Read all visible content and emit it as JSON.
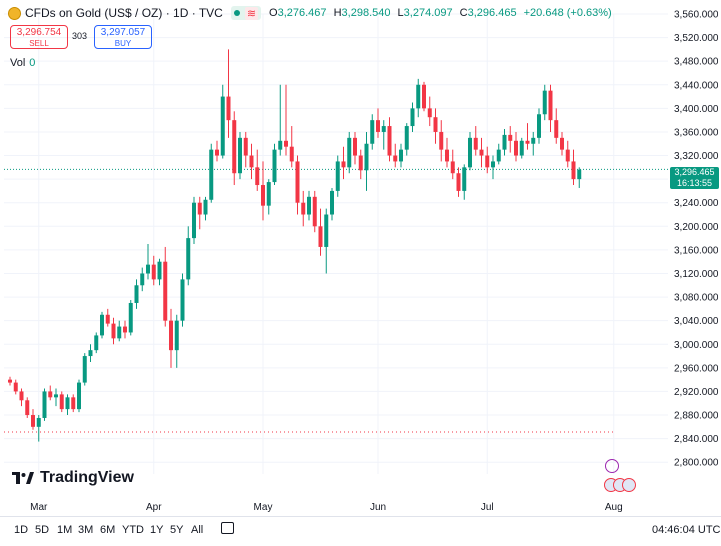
{
  "header": {
    "symbol": "CFDs on Gold (US$ / OZ) · 1D · TVC",
    "status_wave": "≋",
    "ohlc": {
      "o_label": "O",
      "o": "3,276.467",
      "h_label": "H",
      "h": "3,298.540",
      "l_label": "L",
      "l": "3,274.097",
      "c_label": "C",
      "c": "3,296.465",
      "change": "+20.648 (+0.63%)"
    }
  },
  "trade": {
    "sell_price": "3,296.754",
    "sell_label": "SELL",
    "spread": "303",
    "buy_price": "3,297.057",
    "buy_label": "BUY"
  },
  "volume": {
    "label": "Vol",
    "value": "0"
  },
  "price_tag": {
    "price": "3,296.465",
    "countdown": "16:13:55"
  },
  "logo": {
    "text": "TradingView"
  },
  "ranges": [
    "1D",
    "5D",
    "1M",
    "3M",
    "6M",
    "YTD",
    "1Y",
    "5Y",
    "All"
  ],
  "clock": "04:46:04 UTC",
  "colors": {
    "up": "#089981",
    "down": "#f23645",
    "grid": "#f0f3fa"
  },
  "chart_data": {
    "type": "candlestick",
    "ylim": [
      2780,
      3560
    ],
    "y_ticks": [
      2800,
      2840,
      2880,
      2920,
      2960,
      3000,
      3040,
      3080,
      3120,
      3160,
      3200,
      3240,
      3280,
      3320,
      3360,
      3400,
      3440,
      3480,
      3520,
      3560
    ],
    "y_tick_labels": [
      "2,800.000",
      "2,840.000",
      "2,880.000",
      "2,920.000",
      "2,960.000",
      "3,000.000",
      "3,040.000",
      "3,080.000",
      "3,120.000",
      "3,160.000",
      "3,200.000",
      "3,240.000",
      "3,280.000",
      "3,320.000",
      "3,360.000",
      "3,400.000",
      "3,440.000",
      "3,480.000",
      "3,520.000",
      "3,560.000"
    ],
    "x_labels": [
      {
        "label": "Mar",
        "index": 5
      },
      {
        "label": "Apr",
        "index": 25
      },
      {
        "label": "May",
        "index": 44
      },
      {
        "label": "Jun",
        "index": 64
      },
      {
        "label": "Jul",
        "index": 83
      },
      {
        "label": "Aug",
        "index": 105
      }
    ],
    "last_price": 3296.465,
    "ohlc": [
      [
        2940,
        2945,
        2930,
        2935
      ],
      [
        2935,
        2940,
        2915,
        2920
      ],
      [
        2920,
        2925,
        2895,
        2905
      ],
      [
        2905,
        2910,
        2875,
        2880
      ],
      [
        2880,
        2890,
        2855,
        2860
      ],
      [
        2860,
        2880,
        2835,
        2875
      ],
      [
        2875,
        2925,
        2870,
        2920
      ],
      [
        2920,
        2930,
        2905,
        2910
      ],
      [
        2910,
        2925,
        2895,
        2915
      ],
      [
        2915,
        2920,
        2885,
        2890
      ],
      [
        2890,
        2915,
        2880,
        2910
      ],
      [
        2910,
        2915,
        2885,
        2890
      ],
      [
        2890,
        2940,
        2885,
        2935
      ],
      [
        2935,
        2985,
        2930,
        2980
      ],
      [
        2980,
        3000,
        2970,
        2990
      ],
      [
        2990,
        3020,
        2985,
        3015
      ],
      [
        3015,
        3055,
        3010,
        3050
      ],
      [
        3050,
        3060,
        3030,
        3035
      ],
      [
        3035,
        3045,
        3000,
        3010
      ],
      [
        3010,
        3040,
        3005,
        3030
      ],
      [
        3030,
        3040,
        3010,
        3020
      ],
      [
        3020,
        3075,
        3015,
        3070
      ],
      [
        3070,
        3110,
        3060,
        3100
      ],
      [
        3100,
        3130,
        3090,
        3120
      ],
      [
        3120,
        3170,
        3110,
        3135
      ],
      [
        3135,
        3150,
        3100,
        3110
      ],
      [
        3110,
        3145,
        3100,
        3140
      ],
      [
        3140,
        3165,
        3030,
        3040
      ],
      [
        3040,
        3060,
        2960,
        2990
      ],
      [
        2990,
        3050,
        2960,
        3040
      ],
      [
        3040,
        3120,
        3030,
        3110
      ],
      [
        3110,
        3200,
        3100,
        3180
      ],
      [
        3180,
        3250,
        3170,
        3240
      ],
      [
        3240,
        3250,
        3195,
        3220
      ],
      [
        3220,
        3250,
        3210,
        3245
      ],
      [
        3245,
        3340,
        3240,
        3330
      ],
      [
        3330,
        3345,
        3310,
        3320
      ],
      [
        3320,
        3440,
        3315,
        3420
      ],
      [
        3420,
        3500,
        3350,
        3380
      ],
      [
        3380,
        3395,
        3270,
        3290
      ],
      [
        3290,
        3360,
        3280,
        3350
      ],
      [
        3350,
        3360,
        3300,
        3320
      ],
      [
        3320,
        3340,
        3280,
        3300
      ],
      [
        3300,
        3330,
        3260,
        3270
      ],
      [
        3270,
        3310,
        3210,
        3235
      ],
      [
        3235,
        3280,
        3220,
        3275
      ],
      [
        3275,
        3340,
        3270,
        3330
      ],
      [
        3330,
        3440,
        3320,
        3345
      ],
      [
        3345,
        3440,
        3320,
        3335
      ],
      [
        3335,
        3370,
        3300,
        3310
      ],
      [
        3310,
        3320,
        3220,
        3240
      ],
      [
        3240,
        3260,
        3200,
        3220
      ],
      [
        3220,
        3260,
        3210,
        3250
      ],
      [
        3250,
        3260,
        3190,
        3200
      ],
      [
        3200,
        3230,
        3150,
        3165
      ],
      [
        3165,
        3230,
        3120,
        3220
      ],
      [
        3220,
        3265,
        3210,
        3260
      ],
      [
        3260,
        3320,
        3250,
        3310
      ],
      [
        3310,
        3335,
        3280,
        3300
      ],
      [
        3300,
        3360,
        3290,
        3350
      ],
      [
        3350,
        3360,
        3305,
        3320
      ],
      [
        3320,
        3330,
        3280,
        3295
      ],
      [
        3295,
        3360,
        3260,
        3340
      ],
      [
        3340,
        3390,
        3330,
        3380
      ],
      [
        3380,
        3400,
        3350,
        3360
      ],
      [
        3360,
        3380,
        3330,
        3370
      ],
      [
        3370,
        3385,
        3310,
        3320
      ],
      [
        3320,
        3340,
        3300,
        3310
      ],
      [
        3310,
        3340,
        3300,
        3330
      ],
      [
        3330,
        3375,
        3320,
        3370
      ],
      [
        3370,
        3410,
        3360,
        3400
      ],
      [
        3400,
        3450,
        3385,
        3440
      ],
      [
        3440,
        3445,
        3395,
        3400
      ],
      [
        3400,
        3420,
        3370,
        3385
      ],
      [
        3385,
        3400,
        3340,
        3360
      ],
      [
        3360,
        3380,
        3310,
        3330
      ],
      [
        3330,
        3350,
        3300,
        3310
      ],
      [
        3310,
        3330,
        3280,
        3290
      ],
      [
        3290,
        3300,
        3250,
        3260
      ],
      [
        3260,
        3305,
        3245,
        3300
      ],
      [
        3300,
        3360,
        3295,
        3350
      ],
      [
        3350,
        3370,
        3320,
        3330
      ],
      [
        3330,
        3350,
        3300,
        3320
      ],
      [
        3320,
        3335,
        3290,
        3300
      ],
      [
        3300,
        3320,
        3280,
        3310
      ],
      [
        3310,
        3340,
        3305,
        3330
      ],
      [
        3330,
        3365,
        3320,
        3355
      ],
      [
        3355,
        3370,
        3325,
        3345
      ],
      [
        3345,
        3360,
        3310,
        3320
      ],
      [
        3320,
        3350,
        3315,
        3345
      ],
      [
        3345,
        3375,
        3330,
        3340
      ],
      [
        3340,
        3360,
        3320,
        3350
      ],
      [
        3350,
        3400,
        3340,
        3390
      ],
      [
        3390,
        3440,
        3380,
        3430
      ],
      [
        3430,
        3440,
        3360,
        3380
      ],
      [
        3380,
        3400,
        3340,
        3350
      ],
      [
        3350,
        3360,
        3320,
        3330
      ],
      [
        3330,
        3345,
        3300,
        3310
      ],
      [
        3310,
        3330,
        3270,
        3280
      ],
      [
        3280,
        3300,
        3265,
        3296
      ]
    ]
  }
}
